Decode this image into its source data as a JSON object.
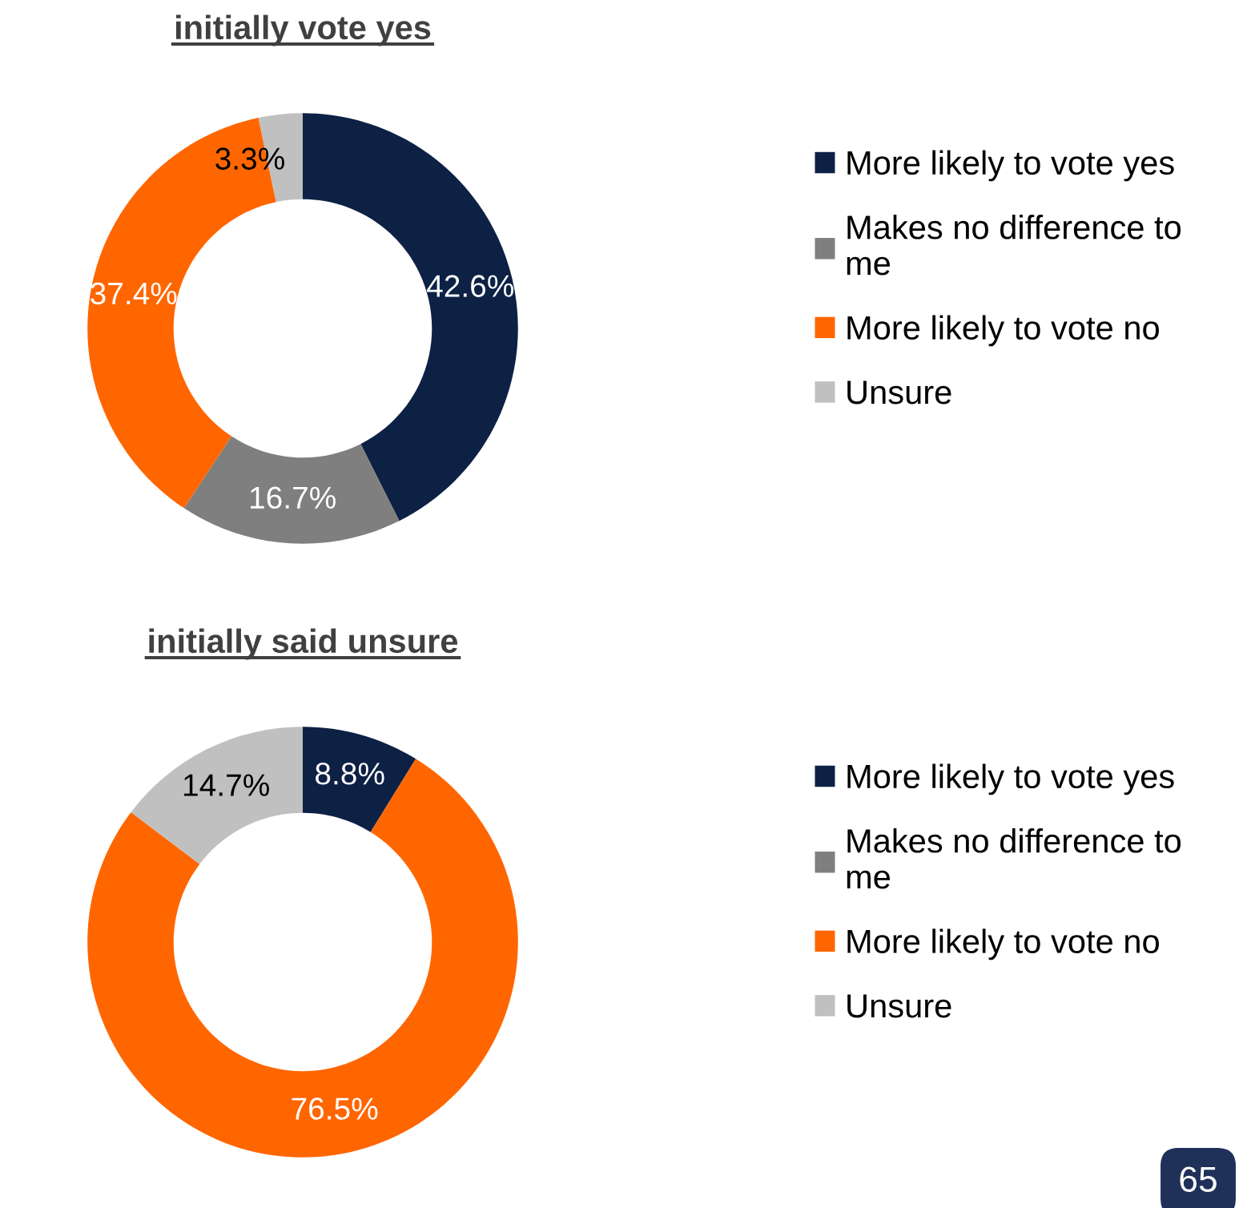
{
  "chart_data": [
    {
      "type": "donut",
      "title": "initially vote yes",
      "categories": [
        "More likely to vote yes",
        "Makes no difference to me",
        "More likely to vote no",
        "Unsure"
      ],
      "values": [
        42.6,
        16.7,
        37.4,
        3.3
      ],
      "colors": [
        "#0d2145",
        "#7f7f7f",
        "#ff6600",
        "#c0c0c0"
      ],
      "value_labels": [
        "42.6%",
        "16.7%",
        "37.4%",
        "3.3%"
      ],
      "legend": "right"
    },
    {
      "type": "donut",
      "title": "initially said unsure",
      "categories": [
        "More likely to vote yes",
        "Makes no difference to me",
        "More likely to vote no",
        "Unsure"
      ],
      "values": [
        8.8,
        0,
        76.5,
        14.7
      ],
      "colors": [
        "#0d2145",
        "#7f7f7f",
        "#ff6600",
        "#c0c0c0"
      ],
      "value_labels": [
        "8.8%",
        null,
        "76.5%",
        "14.7%"
      ],
      "legend": "right",
      "annotations": [
        "65"
      ]
    }
  ]
}
